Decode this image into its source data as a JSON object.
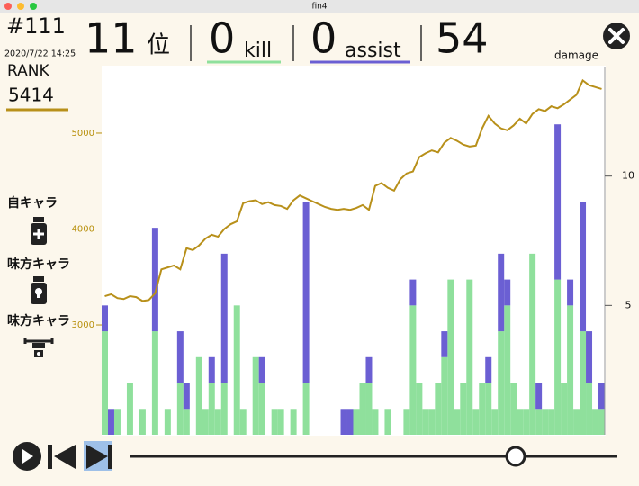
{
  "window": {
    "title": "fin4"
  },
  "header": {
    "match": "#111",
    "datetime": "2020/7/22 14:25",
    "place": 11,
    "place_unit": "位",
    "kills": 0,
    "kills_label": "kill",
    "assists": 0,
    "assists_label": "assist",
    "damage": 54,
    "damage_label": "damage"
  },
  "sidebar": {
    "rank_label": "RANK",
    "rank": 5414,
    "labels": [
      "自キャラ",
      "味方キャラ",
      "味方キャラ"
    ]
  },
  "chart_data": {
    "type": "bar",
    "stacked": true,
    "ylim": [
      1855,
      5685
    ],
    "yticks": [
      3000,
      4000,
      5000
    ],
    "y_color": "#b8900c",
    "y2lim": [
      0,
      14.2
    ],
    "y2ticks": [
      5,
      10
    ],
    "series": [
      {
        "color": "#8fe09c",
        "axis": "y2",
        "values": [
          4,
          0,
          1,
          0,
          2,
          0,
          1,
          0,
          4,
          0,
          1,
          0,
          2,
          1,
          0,
          3,
          1,
          2,
          1,
          2,
          0,
          5,
          1,
          0,
          3,
          2,
          0,
          1,
          1,
          0,
          1,
          0,
          2,
          0,
          0,
          0,
          0,
          0,
          0,
          0,
          1,
          2,
          2,
          1,
          0,
          1,
          0,
          0,
          1,
          5,
          2,
          1,
          1,
          2,
          3,
          6,
          1,
          2,
          6,
          1,
          2,
          2,
          1,
          4,
          5,
          2,
          1,
          1,
          7,
          1,
          1,
          1,
          6,
          2,
          5,
          1,
          4,
          2,
          1,
          1
        ]
      },
      {
        "color": "#6b5fd3",
        "axis": "y2",
        "values": [
          1,
          1,
          0,
          0,
          0,
          0,
          0,
          0,
          4,
          0,
          0,
          0,
          2,
          1,
          0,
          0,
          0,
          1,
          0,
          5,
          0,
          0,
          0,
          0,
          0,
          1,
          0,
          0,
          0,
          0,
          0,
          0,
          7,
          0,
          0,
          0,
          0,
          0,
          1,
          1,
          0,
          0,
          1,
          0,
          0,
          0,
          0,
          0,
          0,
          1,
          0,
          0,
          0,
          0,
          1,
          0,
          0,
          0,
          0,
          0,
          0,
          1,
          0,
          3,
          1,
          0,
          0,
          0,
          0,
          1,
          0,
          0,
          6,
          0,
          1,
          0,
          5,
          2,
          0,
          1
        ]
      },
      {
        "type": "line",
        "color": "#b8901a",
        "axis": "y",
        "values": [
          3300,
          3320,
          3280,
          3270,
          3300,
          3290,
          3250,
          3260,
          3330,
          3580,
          3600,
          3620,
          3580,
          3800,
          3780,
          3830,
          3900,
          3940,
          3920,
          4000,
          4050,
          4080,
          4270,
          4290,
          4300,
          4260,
          4280,
          4250,
          4240,
          4210,
          4300,
          4350,
          4320,
          4290,
          4260,
          4230,
          4210,
          4200,
          4210,
          4200,
          4220,
          4250,
          4200,
          4450,
          4480,
          4430,
          4400,
          4520,
          4580,
          4600,
          4750,
          4790,
          4820,
          4800,
          4900,
          4950,
          4920,
          4880,
          4860,
          4870,
          5050,
          5180,
          5100,
          5050,
          5030,
          5080,
          5150,
          5100,
          5200,
          5250,
          5230,
          5280,
          5260,
          5300,
          5350,
          5400,
          5550,
          5500,
          5480,
          5460
        ]
      }
    ]
  }
}
